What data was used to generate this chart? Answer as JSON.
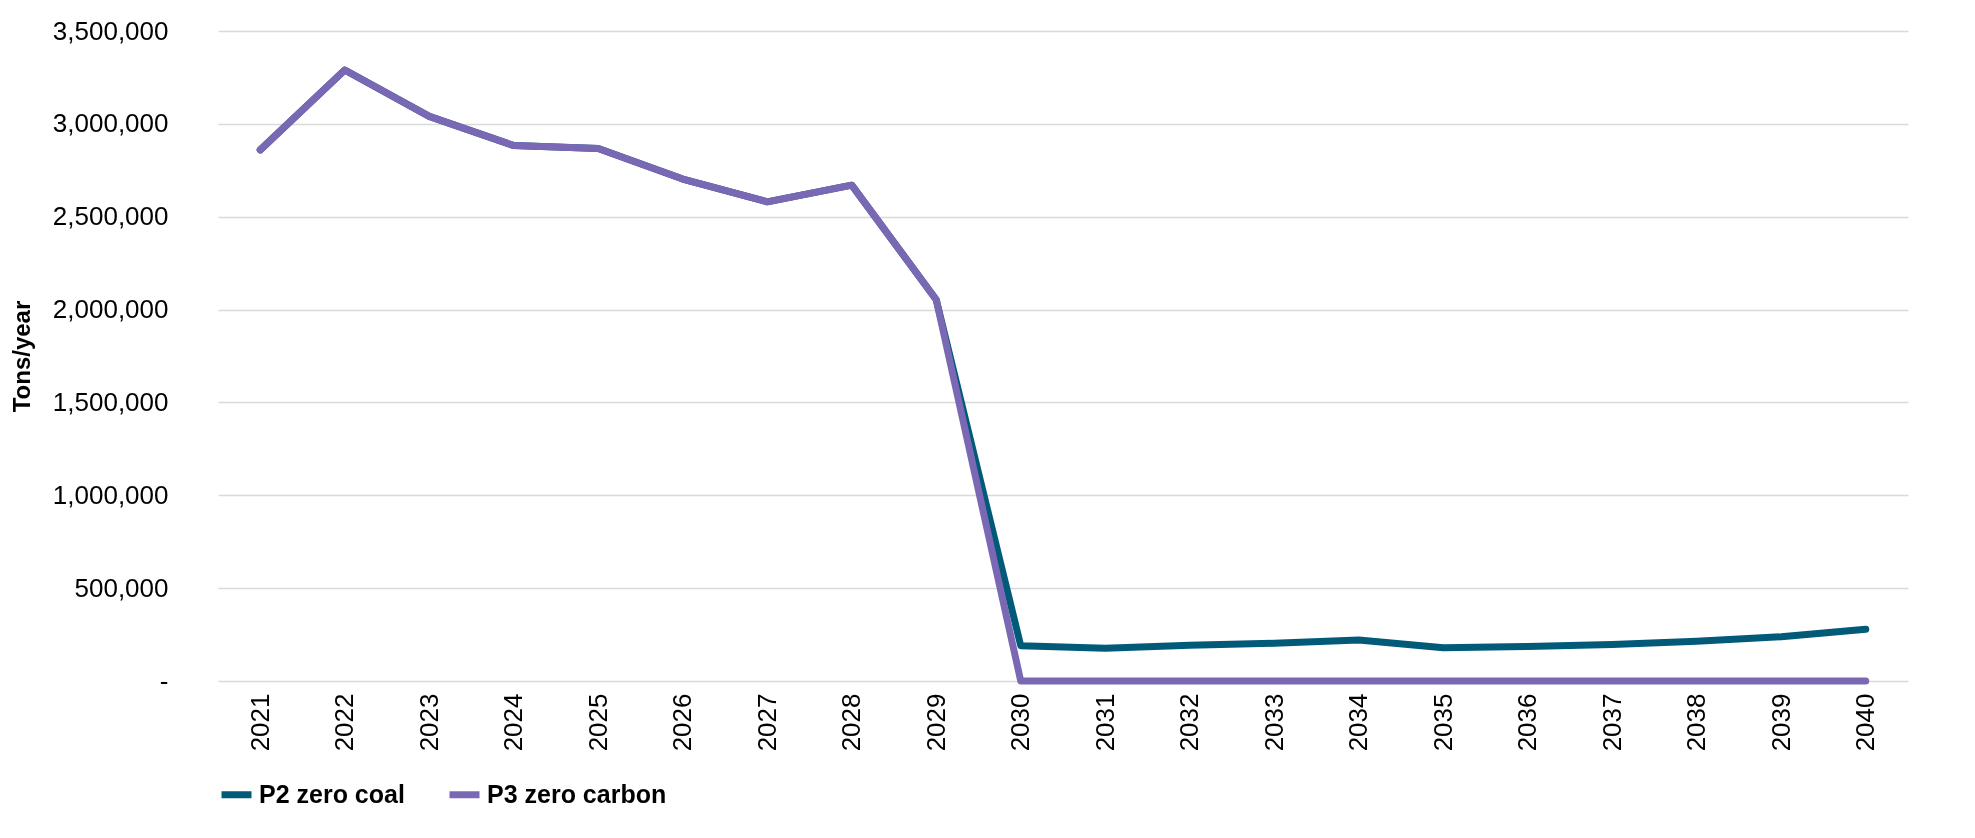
{
  "chart_data": {
    "type": "line",
    "ylabel": "Tons/year",
    "categories": [
      "2021",
      "2022",
      "2023",
      "2024",
      "2025",
      "2026",
      "2027",
      "2028",
      "2029",
      "2030",
      "2031",
      "2032",
      "2033",
      "2034",
      "2035",
      "2036",
      "2037",
      "2038",
      "2039",
      "2040"
    ],
    "series": [
      {
        "name": "P2 zero coal",
        "color": "#005a78",
        "values": [
          2860000,
          3290000,
          3040000,
          2883000,
          2867000,
          2703000,
          2580000,
          2670000,
          2053000,
          190000,
          176000,
          193000,
          203000,
          221000,
          179000,
          186000,
          197000,
          214000,
          238000,
          279000
        ]
      },
      {
        "name": "P3 zero carbon",
        "color": "#7b68b5",
        "values": [
          2860000,
          3290000,
          3040000,
          2883000,
          2867000,
          2703000,
          2580000,
          2670000,
          2053000,
          0,
          0,
          0,
          0,
          0,
          0,
          0,
          0,
          0,
          0,
          0
        ]
      }
    ],
    "ylim": [
      0,
      3500000
    ],
    "yticks": [
      {
        "value": 0,
        "label": "-"
      },
      {
        "value": 500000,
        "label": "500,000"
      },
      {
        "value": 1000000,
        "label": "1,000,000"
      },
      {
        "value": 1500000,
        "label": "1,500,000"
      },
      {
        "value": 2000000,
        "label": "2,000,000"
      },
      {
        "value": 2500000,
        "label": "2,500,000"
      },
      {
        "value": 3000000,
        "label": "3,000,000"
      },
      {
        "value": 3500000,
        "label": "3,500,000"
      }
    ],
    "grid": "y",
    "legend": "bottom",
    "marker": "none",
    "line_style": "solid"
  }
}
